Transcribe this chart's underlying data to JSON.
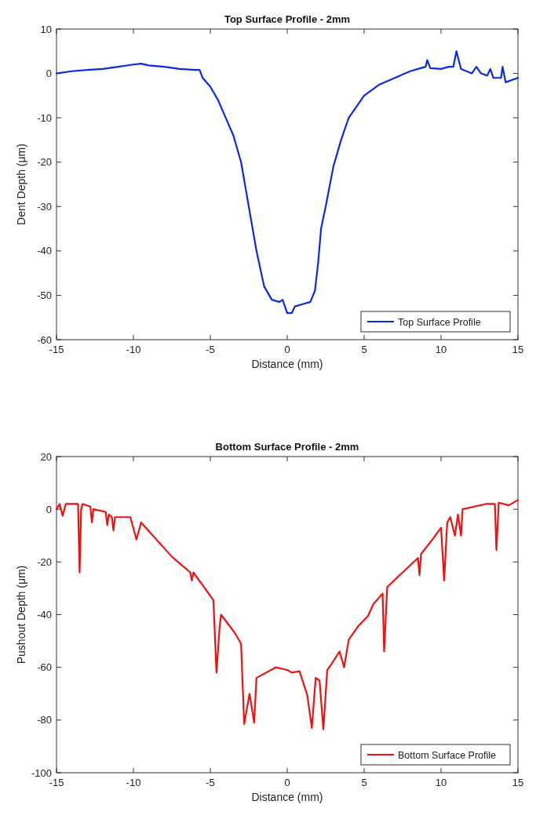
{
  "chart_data": [
    {
      "type": "line",
      "title": "Top Surface Profile - 2mm",
      "xlabel": "Distance (mm)",
      "ylabel": "Dent Depth (μm)",
      "xlim": [
        -15,
        15
      ],
      "xticks": [
        -15,
        -10,
        -5,
        0,
        5,
        10,
        15
      ],
      "ylim": [
        -60,
        10
      ],
      "yticks": [
        -60,
        -50,
        -40,
        -30,
        -20,
        -10,
        0,
        10
      ],
      "legend": "bottom right",
      "grid": false,
      "series": [
        {
          "name": "Top Surface Profile",
          "color": "#0b2be0",
          "x": [
            -15,
            -14,
            -13,
            -12,
            -11,
            -10,
            -9.5,
            -9,
            -8,
            -7,
            -6,
            -5.7,
            -5.5,
            -5,
            -4.5,
            -4,
            -3.5,
            -3,
            -2.5,
            -2,
            -1.5,
            -1,
            -0.5,
            -0.3,
            0,
            0.3,
            0.5,
            1,
            1.5,
            1.8,
            2,
            2.2,
            2.5,
            3,
            3.5,
            4,
            5,
            6,
            7,
            8,
            8.5,
            9,
            9.1,
            9.3,
            10,
            10.5,
            10.8,
            11,
            11.3,
            12,
            12.3,
            12.6,
            13,
            13.2,
            13.4,
            13.9,
            14,
            14.2,
            15
          ],
          "values": [
            0,
            0.5,
            0.8,
            1,
            1.5,
            2,
            2.2,
            1.8,
            1.5,
            1,
            0.8,
            0.8,
            -1,
            -3,
            -6,
            -10,
            -14,
            -20,
            -30,
            -40,
            -48,
            -51,
            -51.5,
            -51,
            -54,
            -54,
            -52.5,
            -52,
            -51.5,
            -49,
            -43,
            -35,
            -30,
            -21,
            -15,
            -10,
            -5,
            -2.5,
            -1,
            0.5,
            1,
            1.5,
            3,
            1.2,
            1,
            1.5,
            1.5,
            5,
            1,
            0,
            1.5,
            0,
            -0.5,
            1,
            -1,
            -1,
            1.5,
            -2,
            -1
          ]
        }
      ]
    },
    {
      "type": "line",
      "title": "Bottom Surface Profile - 2mm",
      "xlabel": "Distance (mm)",
      "ylabel": "Pushout Depth (μm)",
      "xlim": [
        -15,
        15
      ],
      "xticks": [
        -15,
        -10,
        -5,
        0,
        5,
        10,
        15
      ],
      "ylim": [
        -100,
        20
      ],
      "yticks": [
        -100,
        -80,
        -60,
        -40,
        -20,
        0,
        20
      ],
      "legend": "bottom right",
      "grid": false,
      "series": [
        {
          "name": "Bottom Surface Profile",
          "color": "#f01010",
          "x": [
            -15,
            -14.8,
            -14.6,
            -14.4,
            -14,
            -13.6,
            -13.5,
            -13.4,
            -13.3,
            -12.8,
            -12.7,
            -12.6,
            -11.8,
            -11.7,
            -11.6,
            -11.4,
            -11.3,
            -11.2,
            -10.2,
            -9.8,
            -9.5,
            -7.5,
            -6.3,
            -6.2,
            -6.1,
            -4.8,
            -4.6,
            -4.4,
            -4.3,
            -3.4,
            -3,
            -2.8,
            -2.45,
            -2.15,
            -2,
            -0.75,
            0,
            0.3,
            0.8,
            1.3,
            1.6,
            1.85,
            2.1,
            2.35,
            2.6,
            2.85,
            3.4,
            3.7,
            4,
            4.6,
            5.25,
            5.6,
            6.2,
            6.3,
            6.5,
            8.5,
            8.6,
            8.7,
            9.5,
            10,
            10.2,
            10.4,
            10.6,
            10.9,
            11.1,
            11.3,
            11.4,
            12.9,
            13.5,
            13.6,
            13.75,
            14.4,
            15
          ],
          "values": [
            0,
            2,
            -2.5,
            2,
            2,
            2,
            -24,
            0,
            2,
            1,
            -5,
            0,
            -1,
            -6,
            -2,
            -3,
            -8,
            -3,
            -3,
            -11.5,
            -5,
            -18,
            -24,
            -27,
            -24,
            -34.5,
            -62,
            -45,
            -40,
            -47,
            -51,
            -81.5,
            -70,
            -81,
            -64,
            -60,
            -61,
            -62,
            -61.5,
            -70.5,
            -83,
            -64,
            -65,
            -83.5,
            -61,
            -59,
            -54,
            -60,
            -49.5,
            -44.5,
            -40.5,
            -36,
            -32,
            -54,
            -29.5,
            -18.5,
            -25,
            -17,
            -11,
            -7,
            -27,
            -5,
            -3,
            -10,
            -2,
            -10,
            0,
            2,
            2,
            -15.5,
            2.5,
            1.5,
            3.5
          ]
        }
      ]
    }
  ]
}
